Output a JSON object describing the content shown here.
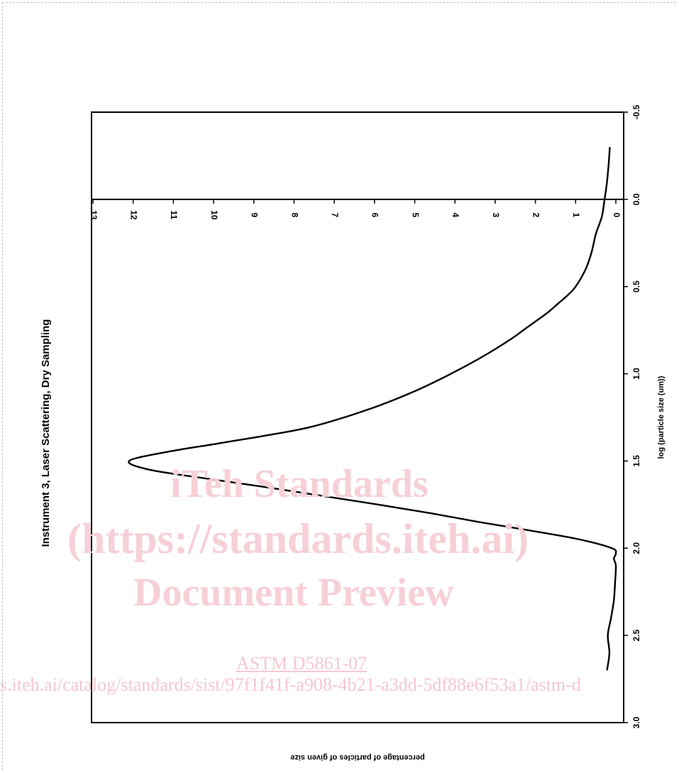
{
  "chart_data": {
    "type": "line",
    "orientation": "rotated 90 degrees clockwise (x axis runs top to bottom on the right, y axis along the bottom)",
    "title": "Instrument 3, Laser Scattering, Dry Sampling",
    "xlabel": "log (particle size (um))",
    "ylabel": "percentage of particles of given size",
    "xlim": [
      -0.5,
      3.0
    ],
    "ylim": [
      0,
      13
    ],
    "x_ticks": [
      "-0.5",
      "0.0",
      "0.5",
      "1.0",
      "1.5",
      "2.0",
      "2.5",
      "3.0"
    ],
    "y_ticks": [
      "0",
      "1",
      "2",
      "3",
      "4",
      "5",
      "6",
      "7",
      "8",
      "9",
      "10",
      "11",
      "12",
      "13"
    ],
    "grid": false,
    "legend": "none",
    "series": [
      {
        "x": [
          -0.3,
          -0.2,
          -0.1,
          0.0,
          0.1,
          0.2,
          0.3,
          0.4,
          0.5,
          0.55,
          0.6,
          0.65,
          0.7,
          0.75,
          0.8,
          0.9,
          1.0,
          1.1,
          1.2,
          1.3,
          1.35,
          1.4,
          1.45,
          1.5,
          1.55,
          1.6,
          1.65,
          1.7,
          1.75,
          1.8,
          1.85,
          1.9,
          1.95,
          2.0,
          2.03,
          2.06,
          2.1,
          2.2,
          2.3,
          2.4,
          2.5,
          2.6,
          2.7
        ],
        "y": [
          0.15,
          0.18,
          0.22,
          0.28,
          0.35,
          0.5,
          0.6,
          0.75,
          1.0,
          1.2,
          1.45,
          1.7,
          2.0,
          2.3,
          2.6,
          3.3,
          4.1,
          5.0,
          6.1,
          7.5,
          8.6,
          9.9,
          11.2,
          12.1,
          11.6,
          10.2,
          8.7,
          7.3,
          5.9,
          4.6,
          3.4,
          2.1,
          0.9,
          0.1,
          0.0,
          0.05,
          0.0,
          0.02,
          0.05,
          0.12,
          0.2,
          0.16,
          0.22
        ]
      }
    ]
  },
  "watermark": {
    "line1": "iTeh Standards",
    "line2": "(https://standards.iteh.ai)",
    "line3": "Document Preview",
    "line4": "ASTM D5861-07",
    "line5": "s.iteh.ai/catalog/standards/sist/97f1f41f-a908-4b21-a3dd-5df88e6f53a1/astm-d"
  }
}
